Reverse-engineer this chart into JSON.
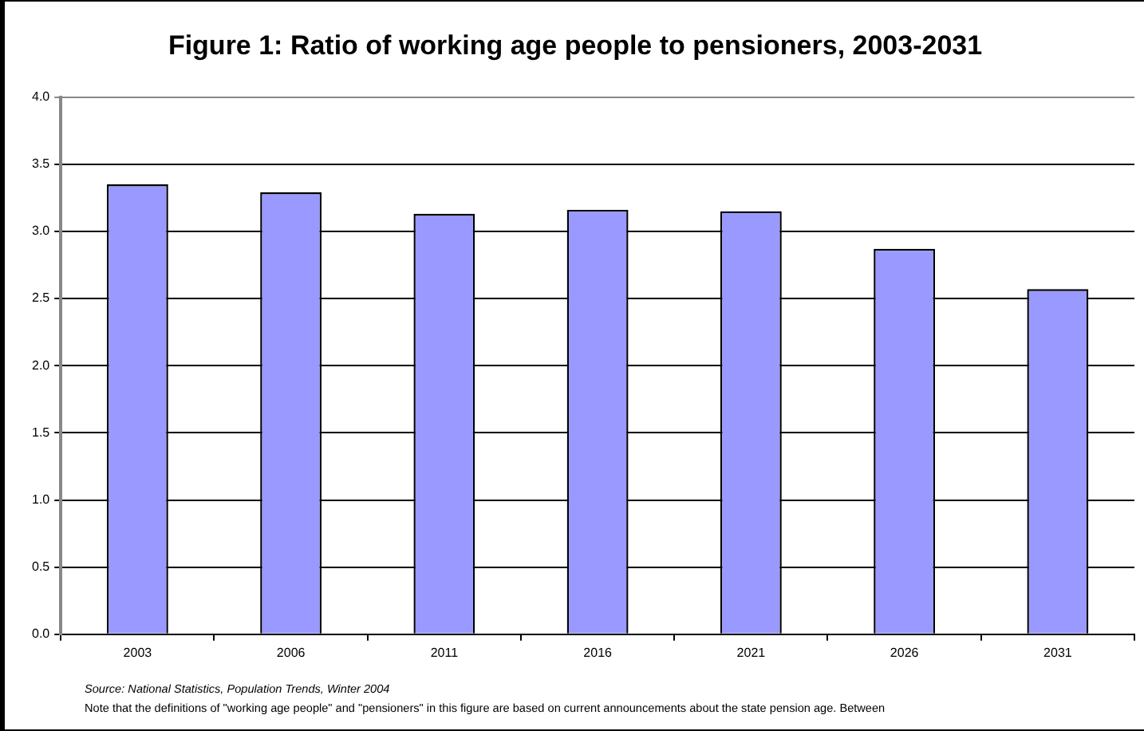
{
  "chart_data": {
    "type": "bar",
    "title": "Figure 1: Ratio of working age people to pensioners, 2003-2031",
    "categories": [
      "2003",
      "2006",
      "2011",
      "2016",
      "2021",
      "2026",
      "2031"
    ],
    "values": [
      3.35,
      3.29,
      3.13,
      3.16,
      3.15,
      2.87,
      2.57
    ],
    "color": "#9999ff",
    "ylim": [
      0,
      4
    ],
    "yticks": [
      {
        "value": 0,
        "label": "0.0"
      },
      {
        "value": 0.5,
        "label": "0.5"
      },
      {
        "value": 1,
        "label": "1.0"
      },
      {
        "value": 1.5,
        "label": "1.5"
      },
      {
        "value": 2,
        "label": "2.0"
      },
      {
        "value": 2.5,
        "label": "2.5"
      },
      {
        "value": 3,
        "label": "3.0"
      },
      {
        "value": 3.5,
        "label": "3.5"
      },
      {
        "value": 4,
        "label": "4.0"
      }
    ],
    "grid": "y",
    "annotations": [
      "Source: National Statistics, Population Trends, Winter 2004",
      "Note that the definitions of \"working age people\" and \"pensioners\" in this figure are based on current announcements about the state pension age.  Between"
    ]
  }
}
